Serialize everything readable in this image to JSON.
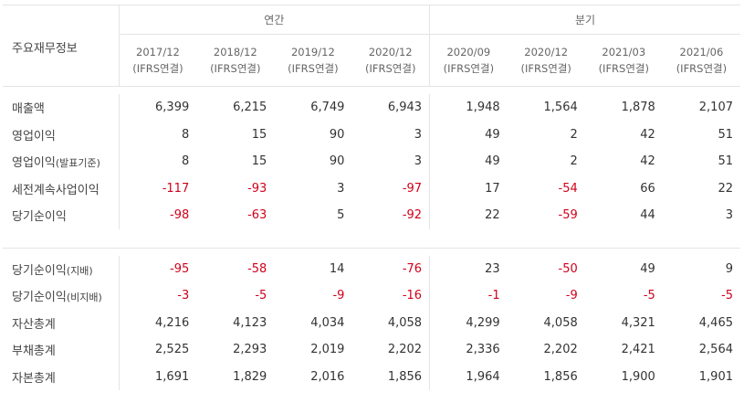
{
  "header": {
    "label": "주요재무정보",
    "groups": [
      {
        "label": "연간"
      },
      {
        "label": "분기"
      }
    ],
    "periods": [
      {
        "date": "2017/12",
        "basis": "(IFRS연결)"
      },
      {
        "date": "2018/12",
        "basis": "(IFRS연결)"
      },
      {
        "date": "2019/12",
        "basis": "(IFRS연결)"
      },
      {
        "date": "2020/12",
        "basis": "(IFRS연결)"
      },
      {
        "date": "2020/09",
        "basis": "(IFRS연결)"
      },
      {
        "date": "2020/12",
        "basis": "(IFRS연결)"
      },
      {
        "date": "2021/03",
        "basis": "(IFRS연결)"
      },
      {
        "date": "2021/06",
        "basis": "(IFRS연결)"
      }
    ]
  },
  "rows": [
    {
      "label": "매출액",
      "label_small": "",
      "values": [
        "6,399",
        "6,215",
        "6,749",
        "6,943",
        "1,948",
        "1,564",
        "1,878",
        "2,107"
      ]
    },
    {
      "label": "영업이익",
      "label_small": "",
      "values": [
        "8",
        "15",
        "90",
        "3",
        "49",
        "2",
        "42",
        "51"
      ]
    },
    {
      "label": "영업이익",
      "label_small": "(발표기준)",
      "values": [
        "8",
        "15",
        "90",
        "3",
        "49",
        "2",
        "42",
        "51"
      ]
    },
    {
      "label": "세전계속사업이익",
      "label_small": "",
      "values": [
        "-117",
        "-93",
        "3",
        "-97",
        "17",
        "-54",
        "66",
        "22"
      ]
    },
    {
      "label": "당기순이익",
      "label_small": "",
      "values": [
        "-98",
        "-63",
        "5",
        "-92",
        "22",
        "-59",
        "44",
        "3"
      ]
    },
    {
      "label": "당기순이익",
      "label_small": "(지배)",
      "values": [
        "-95",
        "-58",
        "14",
        "-76",
        "23",
        "-50",
        "49",
        "9"
      ]
    },
    {
      "label": "당기순이익",
      "label_small": "(비지배)",
      "values": [
        "-3",
        "-5",
        "-9",
        "-16",
        "-1",
        "-9",
        "-5",
        "-5"
      ]
    },
    {
      "label": "자산총계",
      "label_small": "",
      "values": [
        "4,216",
        "4,123",
        "4,034",
        "4,058",
        "4,299",
        "4,058",
        "4,321",
        "4,465"
      ]
    },
    {
      "label": "부채총계",
      "label_small": "",
      "values": [
        "2,525",
        "2,293",
        "2,019",
        "2,202",
        "2,336",
        "2,202",
        "2,421",
        "2,564"
      ]
    },
    {
      "label": "자본총계",
      "label_small": "",
      "values": [
        "1,691",
        "1,829",
        "2,016",
        "1,856",
        "1,964",
        "1,856",
        "1,900",
        "1,901"
      ]
    }
  ],
  "colors": {
    "negative": "#d0021b",
    "text": "#333333",
    "border": "#e4e4e4"
  }
}
